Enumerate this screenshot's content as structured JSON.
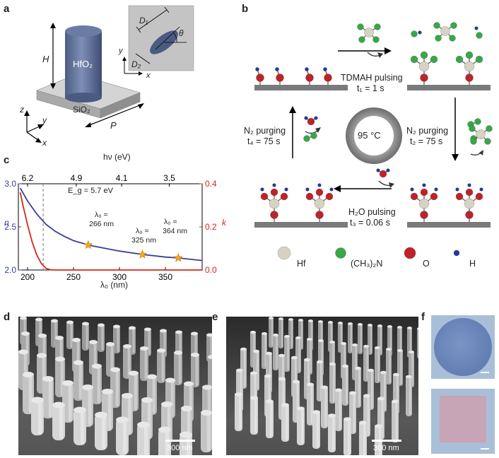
{
  "panels": {
    "a": {
      "label": "a",
      "pillar": "HfO₂",
      "substrate": "SiO₂",
      "height": "H",
      "period": "P",
      "axes": {
        "x": "x",
        "y": "y",
        "z": "z"
      },
      "inset": {
        "d1": "D₁",
        "d2": "D₂",
        "theta": "θ",
        "x": "x",
        "y": "y"
      }
    },
    "b": {
      "label": "b",
      "temperature": "95 °C",
      "step1": {
        "name": "TDMAH pulsing",
        "time": "t₁ = 1 s"
      },
      "step2": {
        "name": "N₂ purging",
        "time": "t₂ = 75 s"
      },
      "step3": {
        "name": "H₂O pulsing",
        "time": "t₃ = 0.06 s"
      },
      "step4": {
        "name": "N₂ purging",
        "time": "t₄ = 75 s"
      },
      "legend": {
        "hf": "Hf",
        "ligand": "(CH₃)₂N",
        "o": "O",
        "h": "H"
      },
      "colors": {
        "hf": "#d8d2c4",
        "ligand": "#3aa64a",
        "o": "#c0222a",
        "h": "#1f3aa0",
        "substrate": "#7a7a7a"
      }
    },
    "c": {
      "label": "c",
      "eg_label": "E_g = 5.7 eV",
      "top_axis_label": "hν (eV)",
      "top_ticks": [
        "6.2",
        "4.9",
        "4.1",
        "3.5"
      ],
      "markers": [
        {
          "lambda": 266,
          "label1": "λ₀ =",
          "label2": "266 nm"
        },
        {
          "lambda": 325,
          "label1": "λ₀ =",
          "label2": "325 nm"
        },
        {
          "lambda": 364,
          "label1": "λ₀ =",
          "label2": "364 nm"
        }
      ]
    },
    "d": {
      "label": "d",
      "scale": "300 nm"
    },
    "e": {
      "label": "e",
      "scale": "300 nm"
    },
    "f": {
      "label": "f"
    }
  },
  "chart_data": {
    "type": "line",
    "title": "",
    "xlabel": "λ₀ (nm)",
    "ylabel_left": "n",
    "ylabel_right": "k",
    "xlim": [
      190,
      390
    ],
    "ylim_left": [
      2.0,
      3.0
    ],
    "ylim_right": [
      0.0,
      0.4
    ],
    "x_ticks": [
      200,
      250,
      300,
      350
    ],
    "y_ticks_left": [
      "2.0",
      "2.5",
      "3.0"
    ],
    "y_ticks_right": [
      "0.0",
      "0.2",
      "0.4"
    ],
    "eg_wavelength": 217,
    "series": [
      {
        "name": "n",
        "axis": "left",
        "color": "#3b3d99",
        "x": [
          192,
          200,
          210,
          220,
          230,
          240,
          250,
          260,
          270,
          280,
          300,
          325,
          350,
          364,
          390
        ],
        "y": [
          2.95,
          2.8,
          2.65,
          2.53,
          2.45,
          2.39,
          2.34,
          2.31,
          2.28,
          2.26,
          2.22,
          2.18,
          2.15,
          2.14,
          2.11
        ]
      },
      {
        "name": "k",
        "axis": "right",
        "color": "#d42a1a",
        "x": [
          192,
          195,
          200,
          205,
          210,
          215,
          220,
          225,
          230,
          390
        ],
        "y": [
          0.36,
          0.3,
          0.21,
          0.13,
          0.07,
          0.03,
          0.008,
          0.001,
          0.0,
          0.0
        ]
      }
    ],
    "markers_x": [
      266,
      325,
      364
    ],
    "markers_y": [
      2.29,
      2.18,
      2.14
    ],
    "marker_color": "#f2a81d"
  }
}
